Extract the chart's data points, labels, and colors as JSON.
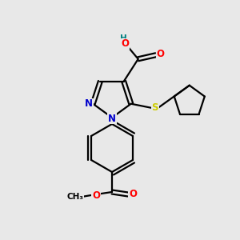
{
  "background_color": "#e8e8e8",
  "bond_color": "#000000",
  "atom_colors": {
    "N": "#0000cc",
    "O": "#ff0000",
    "S": "#cccc00",
    "H": "#008080",
    "C": "#000000"
  },
  "font_size": 8.5,
  "fig_size": [
    3.0,
    3.0
  ],
  "dpi": 100,
  "lw": 1.6
}
